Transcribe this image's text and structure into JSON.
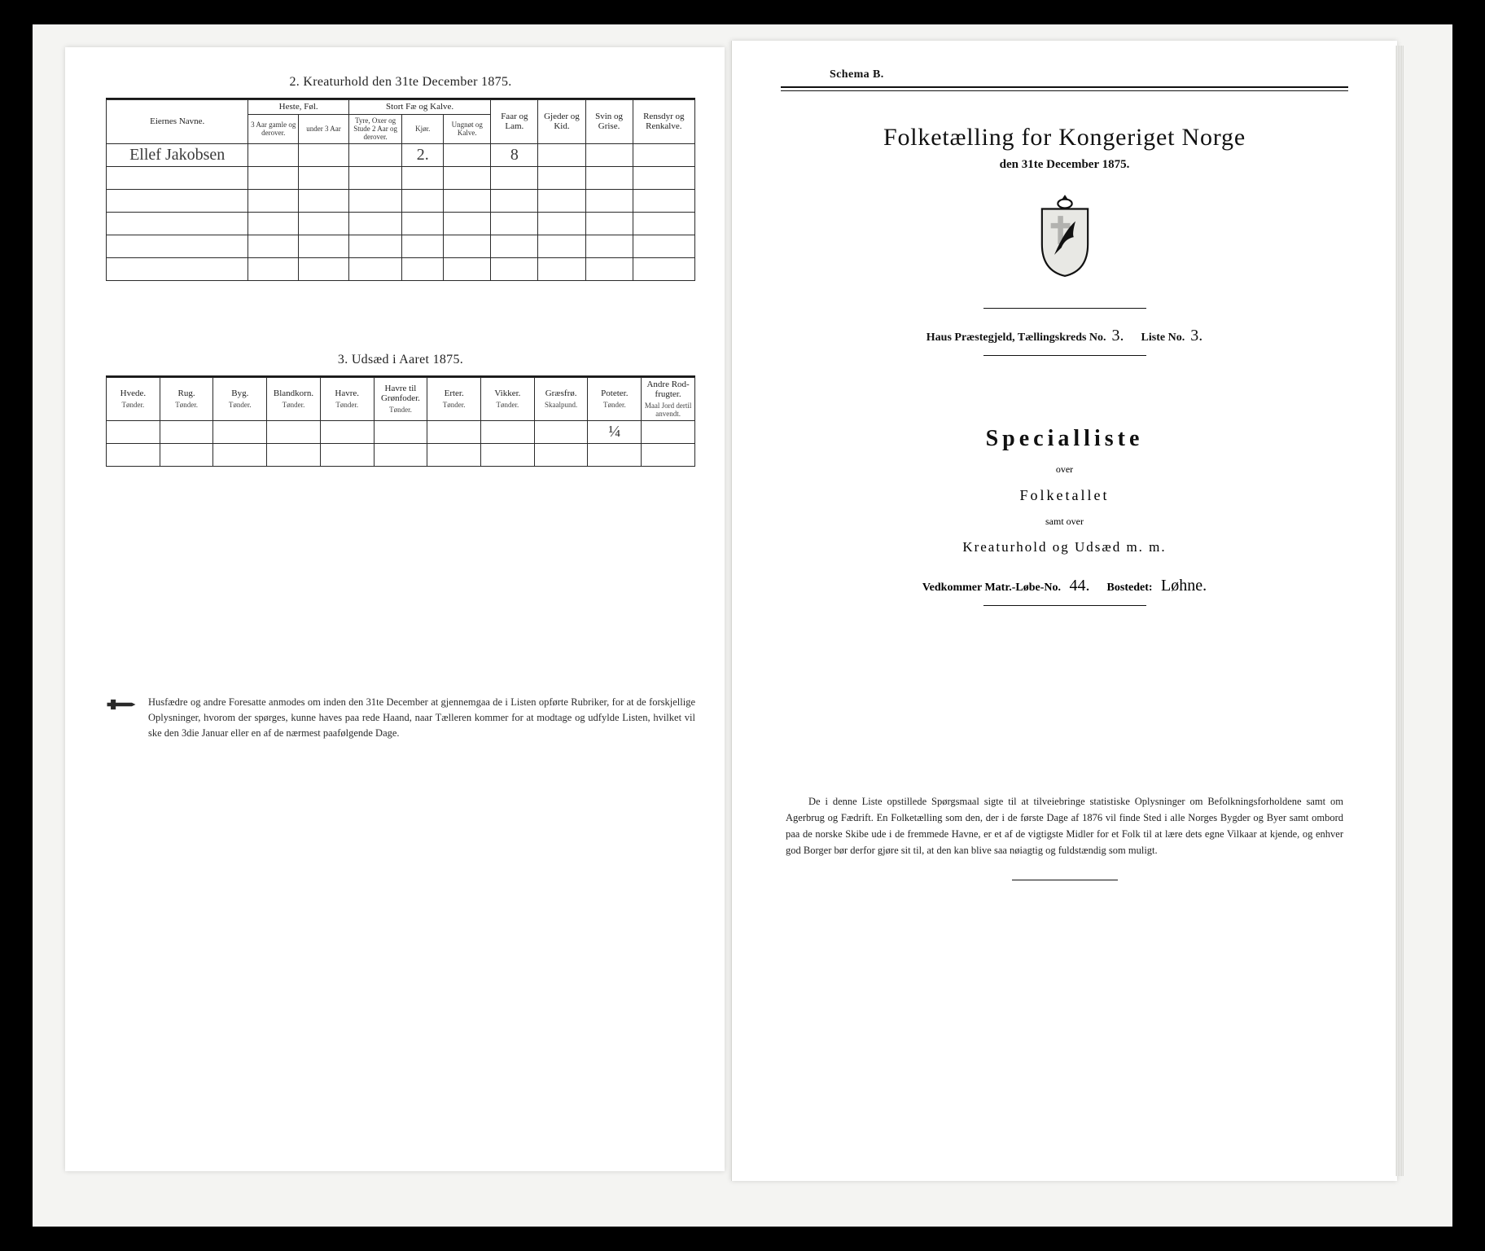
{
  "left": {
    "section2_title": "2.  Kreaturhold den 31te December 1875.",
    "table1": {
      "col_name": "Eiernes Navne.",
      "grp_heste": "Heste, Føl.",
      "grp_stort": "Stort Fæ og Kalve.",
      "col_faar": "Faar og Lam.",
      "col_gjed": "Gjeder og Kid.",
      "col_svin": "Svin og Grise.",
      "col_ren": "Rensdyr og Renkalve.",
      "sub_h1": "3 Aar gamle og derover.",
      "sub_h2": "under 3 Aar",
      "sub_s1": "Tyre, Oxer og Stude 2 Aar og derover.",
      "sub_s2": "Kjør.",
      "sub_s3": "Ungnøt og Kalve.",
      "row1_name": "Ellef Jakobsen",
      "row1_kjor": "2.",
      "row1_faar": "8"
    },
    "section3_title": "3.  Udsæd i Aaret 1875.",
    "table2": {
      "cols": [
        "Hvede.",
        "Rug.",
        "Byg.",
        "Blandkorn.",
        "Havre.",
        "Havre til Grønfoder.",
        "Erter.",
        "Vikker.",
        "Græsfrø.",
        "Poteter.",
        "Andre Rod-frugter."
      ],
      "units": [
        "Tønder.",
        "Tønder.",
        "Tønder.",
        "Tønder.",
        "Tønder.",
        "Tønder.",
        "Tønder.",
        "Tønder.",
        "Skaalpund.",
        "Tønder.",
        "Maal Jord dertil anvendt."
      ],
      "row_poteter": "¼"
    },
    "footnote": "Husfædre og andre Foresatte anmodes om inden den 31te December at gjennemgaa de i Listen opførte Rubriker, for at de forskjellige Oplysninger, hvorom der spørges, kunne haves paa rede Haand, naar Tælleren kommer for at modtage og udfylde Listen, hvilket vil ske den 3die Januar eller en af de nærmest paafølgende Dage."
  },
  "right": {
    "schema": "Schema B.",
    "title": "Folketælling for Kongeriget Norge",
    "date": "den 31te December 1875.",
    "admin_prefix": "Haus Præstegjeld,  Tællingskreds No.",
    "admin_kreds": "3.",
    "admin_liste_lbl": "Liste No.",
    "admin_liste": "3.",
    "special": "Specialliste",
    "over": "over",
    "folketallet": "Folketallet",
    "samt": "samt over",
    "kreat": "Kreaturhold og Udsæd m. m.",
    "matr_lbl": "Vedkommer Matr.-Løbe-No.",
    "matr_val": "44.",
    "bostedet_lbl": "Bostedet:",
    "bostedet_val": "Løhne.",
    "footnote": "De i denne Liste opstillede Spørgsmaal sigte til at tilveiebringe statistiske Oplysninger om Befolkningsforholdene samt om Agerbrug og Fædrift.  En Folketælling som den, der i de første Dage af 1876 vil finde Sted i alle Norges Bygder og Byer samt ombord paa de norske Skibe ude i de fremmede Havne, er et af de vigtigste Midler for et Folk til at lære dets egne Vilkaar at kjende, og enhver god Borger bør derfor gjøre sit til, at den kan blive saa nøiagtig og fuldstændig som muligt."
  },
  "colors": {
    "page_bg": "#ffffff",
    "scan_bg": "#f4f4f2",
    "ink": "#1a1a1a"
  }
}
